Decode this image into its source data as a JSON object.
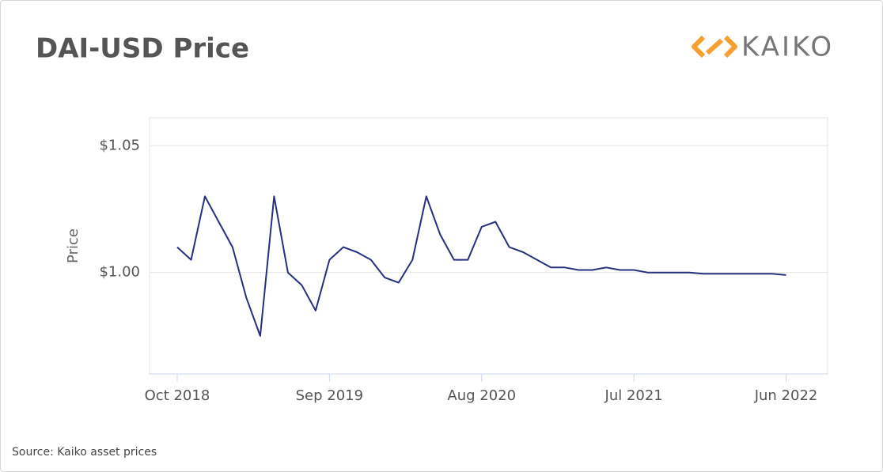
{
  "chart_data": {
    "type": "line",
    "title": "DAI-USD Price",
    "brand": "KAIKO",
    "ylabel": "Price",
    "source": "Source: Kaiko asset prices",
    "x": [
      "2018-10",
      "2018-11",
      "2018-12",
      "2019-01",
      "2019-02",
      "2019-03",
      "2019-04",
      "2019-05",
      "2019-06",
      "2019-07",
      "2019-08",
      "2019-09",
      "2019-10",
      "2019-11",
      "2019-12",
      "2020-01",
      "2020-02",
      "2020-03",
      "2020-04",
      "2020-05",
      "2020-06",
      "2020-07",
      "2020-08",
      "2020-09",
      "2020-10",
      "2020-11",
      "2020-12",
      "2021-01",
      "2021-02",
      "2021-03",
      "2021-04",
      "2021-05",
      "2021-06",
      "2021-07",
      "2021-08",
      "2021-09",
      "2021-10",
      "2021-11",
      "2021-12",
      "2022-01",
      "2022-02",
      "2022-03",
      "2022-04",
      "2022-05",
      "2022-06"
    ],
    "series": [
      {
        "name": "Price",
        "color": "#27307f",
        "values": [
          1.01,
          1.005,
          1.03,
          1.02,
          1.01,
          0.99,
          0.975,
          1.03,
          1.0,
          0.995,
          0.985,
          1.005,
          1.01,
          1.008,
          1.005,
          0.998,
          0.996,
          1.005,
          1.03,
          1.015,
          1.005,
          1.005,
          1.018,
          1.02,
          1.01,
          1.008,
          1.005,
          1.002,
          1.002,
          1.001,
          1.001,
          1.002,
          1.001,
          1.001,
          1.0,
          1.0,
          1.0,
          1.0,
          0.9995,
          0.9995,
          0.9995,
          0.9995,
          0.9995,
          0.9995,
          0.999
        ]
      }
    ],
    "xlim": [
      "2018-08",
      "2022-09"
    ],
    "xticks": [
      {
        "value": "2018-10",
        "label": "Oct 2018"
      },
      {
        "value": "2019-09",
        "label": "Sep 2019"
      },
      {
        "value": "2020-08",
        "label": "Aug 2020"
      },
      {
        "value": "2021-07",
        "label": "Jul 2021"
      },
      {
        "value": "2022-06",
        "label": "Jun 2022"
      }
    ],
    "ylim": [
      0.96,
      1.061
    ],
    "yticks": [
      {
        "value": 1,
        "label": "$1.00"
      },
      {
        "value": 1.05,
        "label": "$1.05"
      }
    ],
    "grid": true
  }
}
